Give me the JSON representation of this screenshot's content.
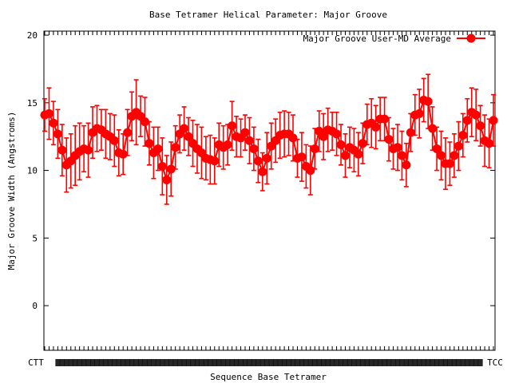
{
  "chart_data": {
    "type": "line",
    "title": "Base Tetramer Helical Parameter: Major Groove",
    "xlabel": "Sequence Base Tetramer",
    "ylabel": "Major Groove Width (Angstroms)",
    "ylim": [
      -3.3,
      20.3
    ],
    "yticks": [
      0,
      5,
      10,
      15,
      20
    ],
    "xtick_first": "CTT",
    "xtick_last": "TCC",
    "grid": false,
    "legend_position": "top-right",
    "series": [
      {
        "name": "Major Groove User-MD Average",
        "color": "#ff0000",
        "values": [
          14.1,
          14.2,
          13.5,
          12.7,
          11.5,
          10.4,
          10.7,
          11.1,
          11.4,
          11.6,
          11.5,
          12.8,
          13.1,
          13.0,
          12.7,
          12.5,
          12.2,
          11.3,
          11.2,
          12.8,
          14.0,
          14.3,
          14.0,
          13.6,
          12.0,
          11.3,
          11.6,
          10.3,
          9.3,
          10.1,
          11.7,
          12.7,
          13.1,
          12.5,
          12.0,
          11.6,
          11.3,
          10.9,
          10.8,
          10.7,
          11.9,
          11.7,
          11.9,
          13.3,
          12.5,
          12.4,
          12.8,
          12.2,
          11.6,
          10.7,
          9.9,
          10.9,
          11.8,
          12.2,
          12.6,
          12.7,
          12.7,
          12.4,
          10.9,
          11.0,
          10.3,
          10.0,
          11.6,
          12.9,
          12.5,
          13.0,
          12.9,
          12.7,
          11.9,
          11.1,
          11.7,
          11.5,
          11.2,
          12.0,
          13.4,
          13.5,
          13.2,
          13.8,
          13.8,
          12.3,
          11.6,
          11.7,
          11.1,
          10.4,
          12.8,
          14.1,
          14.2,
          15.2,
          15.1,
          13.1,
          11.6,
          11.1,
          10.5,
          10.5,
          11.1,
          11.8,
          12.6,
          13.7,
          14.3,
          14.1,
          13.3,
          12.2,
          12.0,
          13.7
        ],
        "errors": [
          1.2,
          1.9,
          1.6,
          1.8,
          1.9,
          2.0,
          2.0,
          2.2,
          2.1,
          1.7,
          2.0,
          1.9,
          1.7,
          1.5,
          1.8,
          1.7,
          1.9,
          1.7,
          1.5,
          1.7,
          1.8,
          2.4,
          1.5,
          1.8,
          1.6,
          1.9,
          1.6,
          2.1,
          1.8,
          2.0,
          1.6,
          1.4,
          1.6,
          1.4,
          1.7,
          1.8,
          1.9,
          1.6,
          1.8,
          1.7,
          1.6,
          1.6,
          1.5,
          1.8,
          1.5,
          1.4,
          1.3,
          1.7,
          1.6,
          1.6,
          1.4,
          1.9,
          1.7,
          1.6,
          1.7,
          1.7,
          1.6,
          1.7,
          1.4,
          1.8,
          1.6,
          1.8,
          1.5,
          1.5,
          1.7,
          1.6,
          1.4,
          1.6,
          1.5,
          1.6,
          1.5,
          1.6,
          1.6,
          1.5,
          1.5,
          1.8,
          1.6,
          1.6,
          1.6,
          1.6,
          1.5,
          1.7,
          1.8,
          1.6,
          1.4,
          1.5,
          1.8,
          1.6,
          2.0,
          1.6,
          1.6,
          1.8,
          1.9,
          1.6,
          1.6,
          1.8,
          1.6,
          1.6,
          1.8,
          1.9,
          1.5,
          1.9,
          1.8,
          1.9
        ]
      }
    ]
  }
}
